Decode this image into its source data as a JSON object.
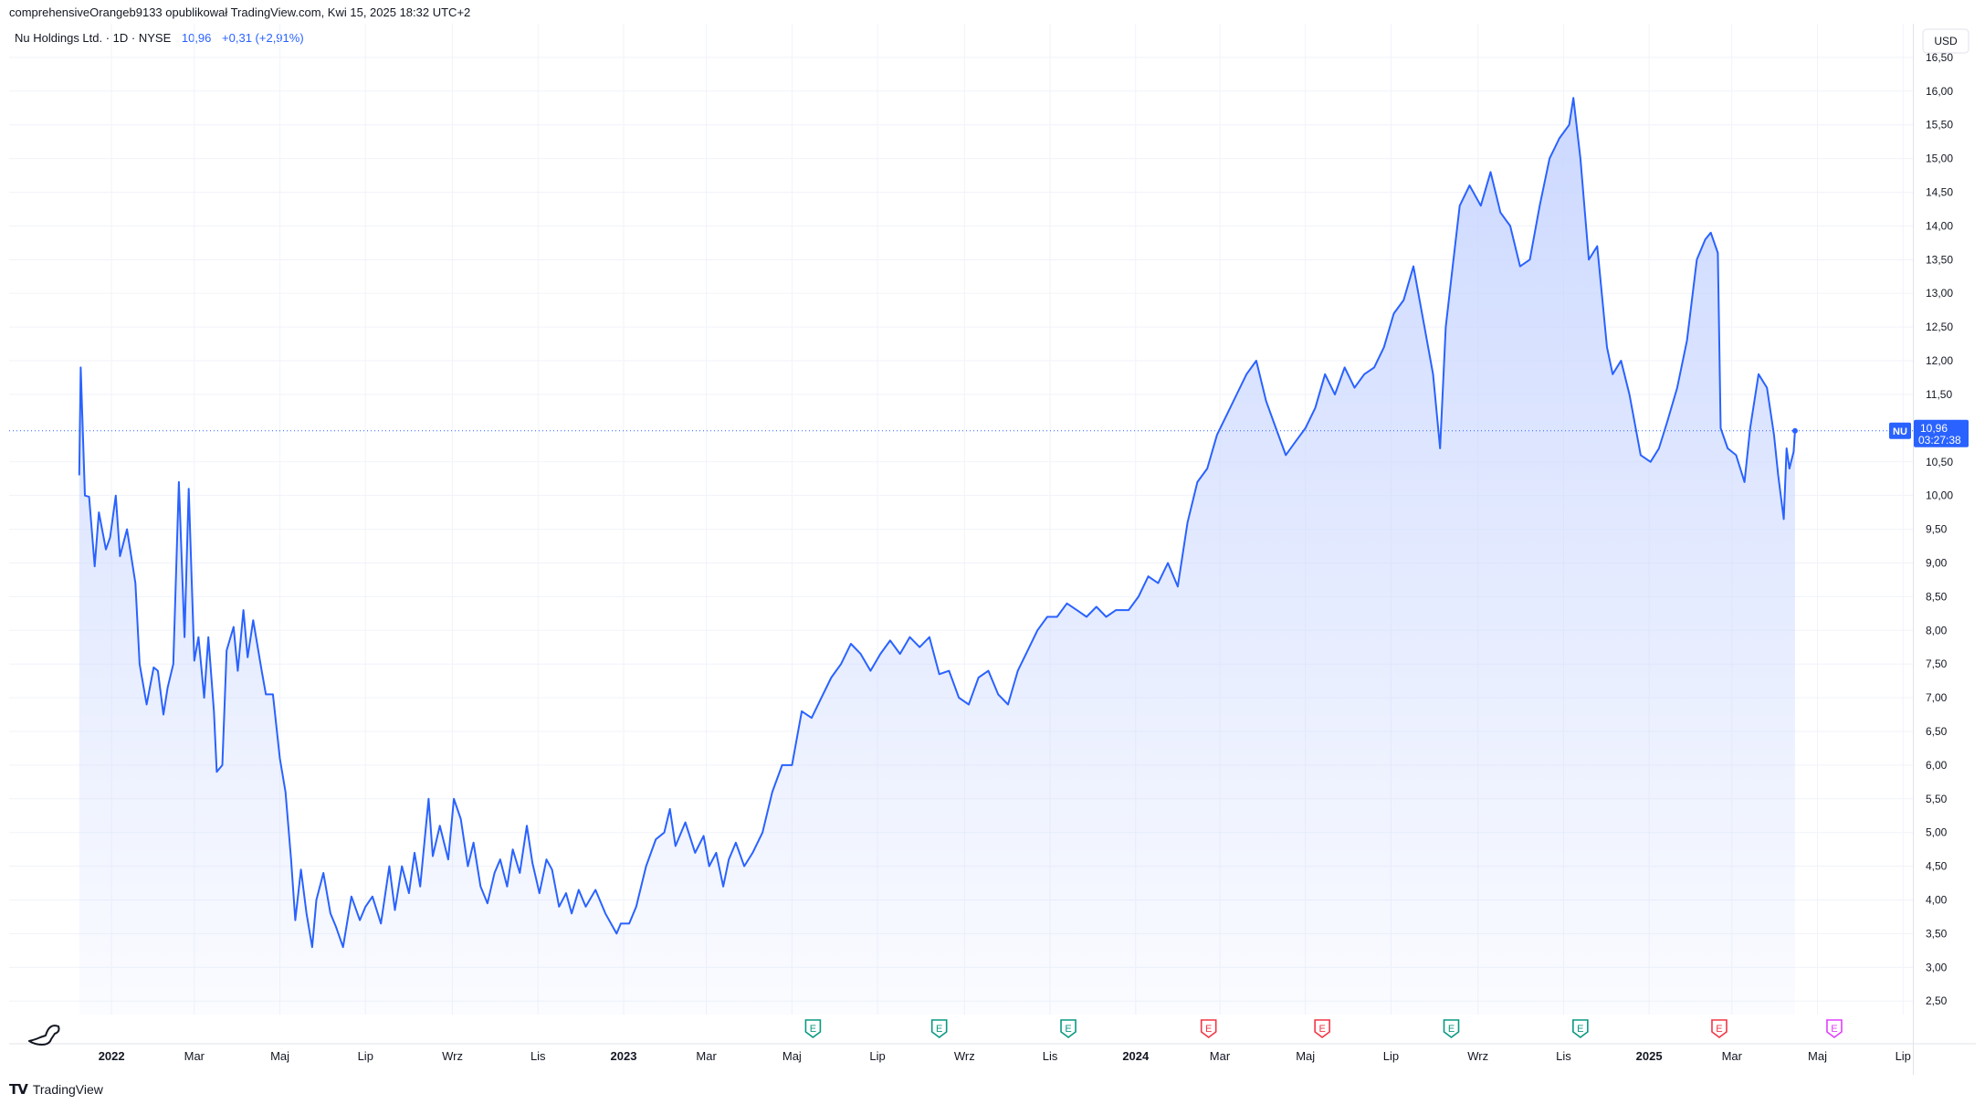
{
  "header": {
    "text": "comprehensiveOrangeb9133 opublikował TradingView.com, Kwi 15, 2025 18:32 UTC+2"
  },
  "legend": {
    "symbol": "Nu Holdings Ltd. · 1D · NYSE",
    "last": "10,96",
    "change": "+0,31 (+2,91%)"
  },
  "footer": {
    "brand": "TradingView"
  },
  "chart_data": {
    "type": "area",
    "currency_label": "USD",
    "ticker_tag": "NU",
    "last_price_label": "10,96",
    "countdown_label": "03:27:38",
    "y_ticks": [
      "2,50",
      "3,00",
      "3,50",
      "4,00",
      "4,50",
      "5,00",
      "5,50",
      "6,00",
      "6,50",
      "7,00",
      "7,50",
      "8,00",
      "8,50",
      "9,00",
      "9,50",
      "10,00",
      "10,50",
      "11,50",
      "12,00",
      "12,50",
      "13,00",
      "13,50",
      "14,00",
      "14,50",
      "15,00",
      "15,50",
      "16,00",
      "16,50"
    ],
    "ylim": [
      2.3,
      17.0
    ],
    "xlim": [
      "2021-10-20",
      "2025-07-08"
    ],
    "x_ticks": [
      {
        "date": "2022-01-01",
        "label": "2022",
        "bold": true
      },
      {
        "date": "2022-03-01",
        "label": "Mar"
      },
      {
        "date": "2022-05-01",
        "label": "Maj"
      },
      {
        "date": "2022-07-01",
        "label": "Lip"
      },
      {
        "date": "2022-09-01",
        "label": "Wrz"
      },
      {
        "date": "2022-11-01",
        "label": "Lis"
      },
      {
        "date": "2023-01-01",
        "label": "2023",
        "bold": true
      },
      {
        "date": "2023-03-01",
        "label": "Mar"
      },
      {
        "date": "2023-05-01",
        "label": "Maj"
      },
      {
        "date": "2023-07-01",
        "label": "Lip"
      },
      {
        "date": "2023-09-01",
        "label": "Wrz"
      },
      {
        "date": "2023-11-01",
        "label": "Lis"
      },
      {
        "date": "2024-01-01",
        "label": "2024",
        "bold": true
      },
      {
        "date": "2024-03-01",
        "label": "Mar"
      },
      {
        "date": "2024-05-01",
        "label": "Maj"
      },
      {
        "date": "2024-07-01",
        "label": "Lip"
      },
      {
        "date": "2024-09-01",
        "label": "Wrz"
      },
      {
        "date": "2024-11-01",
        "label": "Lis"
      },
      {
        "date": "2025-01-01",
        "label": "2025",
        "bold": true
      },
      {
        "date": "2025-03-01",
        "label": "Mar"
      },
      {
        "date": "2025-05-01",
        "label": "Maj"
      },
      {
        "date": "2025-07-01",
        "label": "Lip"
      }
    ],
    "earnings": [
      {
        "date": "2023-05-16",
        "kind": "past-beat",
        "label": "E"
      },
      {
        "date": "2023-08-14",
        "kind": "past-beat",
        "label": "E"
      },
      {
        "date": "2023-11-14",
        "kind": "past-beat",
        "label": "E"
      },
      {
        "date": "2024-02-22",
        "kind": "past-miss",
        "label": "E"
      },
      {
        "date": "2024-05-13",
        "kind": "past-miss",
        "label": "E"
      },
      {
        "date": "2024-08-13",
        "kind": "past-beat",
        "label": "E"
      },
      {
        "date": "2024-11-13",
        "kind": "past-beat",
        "label": "E"
      },
      {
        "date": "2025-02-20",
        "kind": "past-miss",
        "label": "E"
      },
      {
        "date": "2025-05-13",
        "kind": "upcoming",
        "label": "E"
      }
    ],
    "colors": {
      "line": "#2962ff",
      "fill_top": "#c9d6ff",
      "grid": "#f0f3fa",
      "beat": "#089981",
      "miss": "#f23645",
      "upcoming": "#e040fb"
    },
    "series": [
      {
        "values": [
          [
            "2021-12-09",
            10.3
          ],
          [
            "2021-12-10",
            11.9
          ],
          [
            "2021-12-13",
            10.0
          ],
          [
            "2021-12-16",
            9.98
          ],
          [
            "2021-12-20",
            8.95
          ],
          [
            "2021-12-23",
            9.75
          ],
          [
            "2021-12-28",
            9.2
          ],
          [
            "2021-12-31",
            9.38
          ],
          [
            "2022-01-04",
            10.0
          ],
          [
            "2022-01-07",
            9.1
          ],
          [
            "2022-01-12",
            9.5
          ],
          [
            "2022-01-18",
            8.7
          ],
          [
            "2022-01-21",
            7.5
          ],
          [
            "2022-01-26",
            6.9
          ],
          [
            "2022-01-31",
            7.45
          ],
          [
            "2022-02-03",
            7.4
          ],
          [
            "2022-02-07",
            6.75
          ],
          [
            "2022-02-10",
            7.15
          ],
          [
            "2022-02-14",
            7.5
          ],
          [
            "2022-02-18",
            10.2
          ],
          [
            "2022-02-22",
            7.9
          ],
          [
            "2022-02-25",
            10.1
          ],
          [
            "2022-03-01",
            7.55
          ],
          [
            "2022-03-04",
            7.9
          ],
          [
            "2022-03-08",
            7.0
          ],
          [
            "2022-03-11",
            7.9
          ],
          [
            "2022-03-15",
            6.8
          ],
          [
            "2022-03-17",
            5.9
          ],
          [
            "2022-03-21",
            6.0
          ],
          [
            "2022-03-24",
            7.7
          ],
          [
            "2022-03-29",
            8.05
          ],
          [
            "2022-04-01",
            7.4
          ],
          [
            "2022-04-05",
            8.3
          ],
          [
            "2022-04-08",
            7.6
          ],
          [
            "2022-04-12",
            8.15
          ],
          [
            "2022-04-18",
            7.4
          ],
          [
            "2022-04-21",
            7.05
          ],
          [
            "2022-04-26",
            7.05
          ],
          [
            "2022-05-01",
            6.1
          ],
          [
            "2022-05-05",
            5.6
          ],
          [
            "2022-05-09",
            4.6
          ],
          [
            "2022-05-12",
            3.7
          ],
          [
            "2022-05-16",
            4.45
          ],
          [
            "2022-05-20",
            3.8
          ],
          [
            "2022-05-24",
            3.3
          ],
          [
            "2022-05-27",
            4.0
          ],
          [
            "2022-06-01",
            4.4
          ],
          [
            "2022-06-06",
            3.8
          ],
          [
            "2022-06-10",
            3.6
          ],
          [
            "2022-06-15",
            3.3
          ],
          [
            "2022-06-21",
            4.05
          ],
          [
            "2022-06-27",
            3.7
          ],
          [
            "2022-07-01",
            3.9
          ],
          [
            "2022-07-06",
            4.05
          ],
          [
            "2022-07-12",
            3.65
          ],
          [
            "2022-07-18",
            4.5
          ],
          [
            "2022-07-22",
            3.85
          ],
          [
            "2022-07-27",
            4.5
          ],
          [
            "2022-08-01",
            4.1
          ],
          [
            "2022-08-05",
            4.7
          ],
          [
            "2022-08-09",
            4.2
          ],
          [
            "2022-08-15",
            5.5
          ],
          [
            "2022-08-18",
            4.65
          ],
          [
            "2022-08-23",
            5.1
          ],
          [
            "2022-08-29",
            4.6
          ],
          [
            "2022-09-02",
            5.5
          ],
          [
            "2022-09-07",
            5.2
          ],
          [
            "2022-09-12",
            4.5
          ],
          [
            "2022-09-16",
            4.85
          ],
          [
            "2022-09-21",
            4.2
          ],
          [
            "2022-09-26",
            3.95
          ],
          [
            "2022-10-01",
            4.4
          ],
          [
            "2022-10-05",
            4.6
          ],
          [
            "2022-10-10",
            4.2
          ],
          [
            "2022-10-14",
            4.75
          ],
          [
            "2022-10-19",
            4.4
          ],
          [
            "2022-10-24",
            5.1
          ],
          [
            "2022-10-28",
            4.55
          ],
          [
            "2022-11-02",
            4.1
          ],
          [
            "2022-11-07",
            4.6
          ],
          [
            "2022-11-11",
            4.45
          ],
          [
            "2022-11-16",
            3.9
          ],
          [
            "2022-11-21",
            4.1
          ],
          [
            "2022-11-25",
            3.8
          ],
          [
            "2022-11-30",
            4.15
          ],
          [
            "2022-12-05",
            3.9
          ],
          [
            "2022-12-12",
            4.15
          ],
          [
            "2022-12-19",
            3.8
          ],
          [
            "2022-12-27",
            3.5
          ],
          [
            "2022-12-30",
            3.65
          ],
          [
            "2023-01-05",
            3.65
          ],
          [
            "2023-01-10",
            3.9
          ],
          [
            "2023-01-17",
            4.5
          ],
          [
            "2023-01-24",
            4.9
          ],
          [
            "2023-01-30",
            5.0
          ],
          [
            "2023-02-03",
            5.35
          ],
          [
            "2023-02-07",
            4.8
          ],
          [
            "2023-02-14",
            5.15
          ],
          [
            "2023-02-21",
            4.7
          ],
          [
            "2023-02-27",
            4.95
          ],
          [
            "2023-03-03",
            4.5
          ],
          [
            "2023-03-08",
            4.7
          ],
          [
            "2023-03-13",
            4.2
          ],
          [
            "2023-03-17",
            4.6
          ],
          [
            "2023-03-22",
            4.85
          ],
          [
            "2023-03-28",
            4.5
          ],
          [
            "2023-04-03",
            4.7
          ],
          [
            "2023-04-10",
            5.0
          ],
          [
            "2023-04-17",
            5.6
          ],
          [
            "2023-04-24",
            6.0
          ],
          [
            "2023-05-01",
            6.0
          ],
          [
            "2023-05-08",
            6.8
          ],
          [
            "2023-05-15",
            6.7
          ],
          [
            "2023-05-22",
            7.0
          ],
          [
            "2023-05-29",
            7.3
          ],
          [
            "2023-06-05",
            7.5
          ],
          [
            "2023-06-12",
            7.8
          ],
          [
            "2023-06-19",
            7.65
          ],
          [
            "2023-06-26",
            7.4
          ],
          [
            "2023-07-03",
            7.65
          ],
          [
            "2023-07-10",
            7.85
          ],
          [
            "2023-07-17",
            7.65
          ],
          [
            "2023-07-24",
            7.9
          ],
          [
            "2023-07-31",
            7.75
          ],
          [
            "2023-08-07",
            7.9
          ],
          [
            "2023-08-14",
            7.35
          ],
          [
            "2023-08-21",
            7.4
          ],
          [
            "2023-08-28",
            7.0
          ],
          [
            "2023-09-04",
            6.9
          ],
          [
            "2023-09-11",
            7.3
          ],
          [
            "2023-09-18",
            7.4
          ],
          [
            "2023-09-25",
            7.05
          ],
          [
            "2023-10-02",
            6.9
          ],
          [
            "2023-10-09",
            7.4
          ],
          [
            "2023-10-16",
            7.7
          ],
          [
            "2023-10-23",
            8.0
          ],
          [
            "2023-10-30",
            8.2
          ],
          [
            "2023-11-06",
            8.2
          ],
          [
            "2023-11-13",
            8.4
          ],
          [
            "2023-11-20",
            8.3
          ],
          [
            "2023-11-27",
            8.2
          ],
          [
            "2023-12-04",
            8.35
          ],
          [
            "2023-12-11",
            8.2
          ],
          [
            "2023-12-18",
            8.3
          ],
          [
            "2023-12-27",
            8.3
          ],
          [
            "2024-01-03",
            8.5
          ],
          [
            "2024-01-10",
            8.8
          ],
          [
            "2024-01-17",
            8.7
          ],
          [
            "2024-01-24",
            9.0
          ],
          [
            "2024-01-31",
            8.65
          ],
          [
            "2024-02-07",
            9.6
          ],
          [
            "2024-02-14",
            10.2
          ],
          [
            "2024-02-21",
            10.4
          ],
          [
            "2024-02-28",
            10.9
          ],
          [
            "2024-03-06",
            11.2
          ],
          [
            "2024-03-13",
            11.5
          ],
          [
            "2024-03-20",
            11.8
          ],
          [
            "2024-03-27",
            12.0
          ],
          [
            "2024-04-03",
            11.4
          ],
          [
            "2024-04-10",
            11.0
          ],
          [
            "2024-04-17",
            10.6
          ],
          [
            "2024-04-24",
            10.8
          ],
          [
            "2024-05-01",
            11.0
          ],
          [
            "2024-05-08",
            11.3
          ],
          [
            "2024-05-15",
            11.8
          ],
          [
            "2024-05-22",
            11.5
          ],
          [
            "2024-05-29",
            11.9
          ],
          [
            "2024-06-05",
            11.6
          ],
          [
            "2024-06-12",
            11.8
          ],
          [
            "2024-06-19",
            11.9
          ],
          [
            "2024-06-26",
            12.2
          ],
          [
            "2024-07-03",
            12.7
          ],
          [
            "2024-07-10",
            12.9
          ],
          [
            "2024-07-17",
            13.4
          ],
          [
            "2024-07-24",
            12.6
          ],
          [
            "2024-07-31",
            11.8
          ],
          [
            "2024-08-05",
            10.7
          ],
          [
            "2024-08-09",
            12.5
          ],
          [
            "2024-08-14",
            13.4
          ],
          [
            "2024-08-19",
            14.3
          ],
          [
            "2024-08-26",
            14.6
          ],
          [
            "2024-09-03",
            14.3
          ],
          [
            "2024-09-10",
            14.8
          ],
          [
            "2024-09-17",
            14.2
          ],
          [
            "2024-09-24",
            14.0
          ],
          [
            "2024-10-01",
            13.4
          ],
          [
            "2024-10-08",
            13.5
          ],
          [
            "2024-10-15",
            14.3
          ],
          [
            "2024-10-22",
            15.0
          ],
          [
            "2024-10-29",
            15.3
          ],
          [
            "2024-11-05",
            15.5
          ],
          [
            "2024-11-08",
            15.9
          ],
          [
            "2024-11-13",
            15.0
          ],
          [
            "2024-11-19",
            13.5
          ],
          [
            "2024-11-25",
            13.7
          ],
          [
            "2024-12-02",
            12.2
          ],
          [
            "2024-12-06",
            11.8
          ],
          [
            "2024-12-12",
            12.0
          ],
          [
            "2024-12-18",
            11.5
          ],
          [
            "2024-12-26",
            10.6
          ],
          [
            "2025-01-02",
            10.5
          ],
          [
            "2025-01-08",
            10.7
          ],
          [
            "2025-01-14",
            11.1
          ],
          [
            "2025-01-21",
            11.6
          ],
          [
            "2025-01-28",
            12.3
          ],
          [
            "2025-02-04",
            13.5
          ],
          [
            "2025-02-10",
            13.8
          ],
          [
            "2025-02-14",
            13.9
          ],
          [
            "2025-02-19",
            13.6
          ],
          [
            "2025-02-21",
            11.0
          ],
          [
            "2025-02-26",
            10.7
          ],
          [
            "2025-03-04",
            10.6
          ],
          [
            "2025-03-10",
            10.2
          ],
          [
            "2025-03-14",
            11.0
          ],
          [
            "2025-03-20",
            11.8
          ],
          [
            "2025-03-26",
            11.6
          ],
          [
            "2025-03-31",
            10.9
          ],
          [
            "2025-04-03",
            10.3
          ],
          [
            "2025-04-07",
            9.65
          ],
          [
            "2025-04-09",
            10.7
          ],
          [
            "2025-04-11",
            10.4
          ],
          [
            "2025-04-14",
            10.65
          ],
          [
            "2025-04-15",
            10.96
          ]
        ]
      }
    ]
  }
}
